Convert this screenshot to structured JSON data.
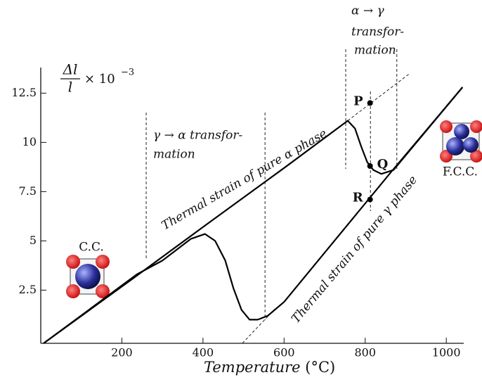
{
  "chart_data": {
    "type": "line",
    "x_label": {
      "text": "Temperature",
      "unit": "(°C)"
    },
    "y_label": {
      "numerator": "Δl",
      "denominator": "l",
      "factor": "× 10",
      "exponent": "−3"
    },
    "xlim": [
      0,
      1043
    ],
    "ylim": [
      -0.2,
      13.8
    ],
    "xticks": [
      200,
      400,
      600,
      800,
      1000
    ],
    "yticks": [
      2.5,
      5,
      7.5,
      10,
      12.5
    ],
    "series": [
      {
        "color": "#000000",
        "x": [
          7,
          228,
          400,
          600,
          757,
          775,
          790,
          805,
          820,
          840,
          870,
          1040
        ],
        "y": [
          -0.2,
          3.1,
          5.7,
          8.7,
          11.1,
          10.7,
          9.8,
          9.0,
          8.6,
          8.4,
          8.6,
          12.8
        ]
      },
      {
        "color": "#000000",
        "x": [
          1040,
          860,
          700,
          600,
          560,
          535,
          515,
          495,
          475,
          455,
          430,
          405,
          370,
          300,
          237,
          7
        ],
        "y": [
          12.8,
          8.4,
          4.4,
          1.9,
          1.2,
          1.0,
          1.0,
          1.5,
          2.6,
          4.0,
          5.0,
          5.35,
          5.1,
          4.0,
          3.3,
          -0.2
        ]
      }
    ],
    "dashed_lines": [
      {
        "x": [
          757,
          910
        ],
        "y": [
          11.1,
          13.5
        ]
      },
      {
        "x": [
          497,
          580
        ],
        "y": [
          -0.2,
          1.6
        ]
      }
    ],
    "vlines": [
      260,
      553,
      752,
      813,
      878
    ],
    "points": [
      {
        "label": "P",
        "x": 812,
        "y": 12.0
      },
      {
        "label": "Q",
        "x": 812,
        "y": 8.8
      },
      {
        "label": "R",
        "x": 812,
        "y": 7.1
      }
    ],
    "annotations": {
      "alpha_gamma": [
        "α → γ",
        "transfor-",
        "mation"
      ],
      "gamma_alpha": [
        "γ → α transfor-",
        "mation"
      ],
      "alpha_strain": "Thermal strain of pure α phase",
      "gamma_strain": "Thermal strain of pure γ phase",
      "cc": "C.C.",
      "fcc": "F.C.C."
    }
  }
}
